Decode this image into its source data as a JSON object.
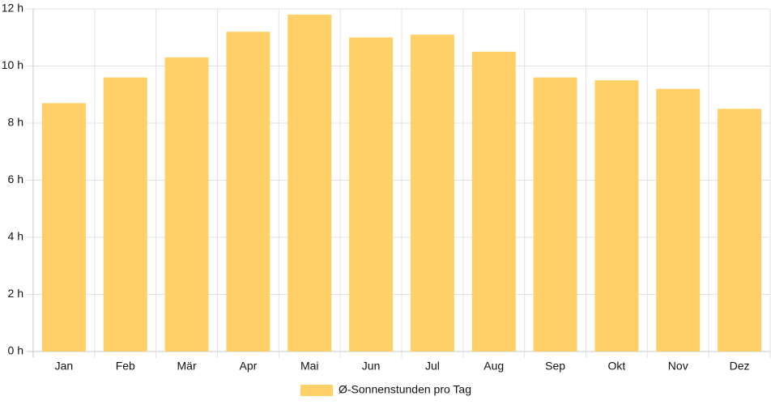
{
  "chart_data": {
    "type": "bar",
    "categories": [
      "Jan",
      "Feb",
      "Mär",
      "Apr",
      "Mai",
      "Jun",
      "Jul",
      "Aug",
      "Sep",
      "Okt",
      "Nov",
      "Dez"
    ],
    "series": [
      {
        "name": "Ø-Sonnenstunden pro Tag",
        "values": [
          8.7,
          9.6,
          10.3,
          11.2,
          11.8,
          11.0,
          11.1,
          10.5,
          9.6,
          9.5,
          9.2,
          8.5
        ],
        "color": "#fed067"
      }
    ],
    "yticks": [
      {
        "value": 0,
        "label": "0 h"
      },
      {
        "value": 2,
        "label": "2 h"
      },
      {
        "value": 4,
        "label": "4 h"
      },
      {
        "value": 6,
        "label": "6 h"
      },
      {
        "value": 8,
        "label": "8 h"
      },
      {
        "value": 10,
        "label": "10 h"
      },
      {
        "value": 12,
        "label": "12 h"
      }
    ],
    "ylim": [
      0,
      12
    ],
    "grid": true,
    "legend_position": "bottom",
    "gridline_color": "#e2e2e2",
    "title": "",
    "xlabel": "",
    "ylabel": ""
  }
}
